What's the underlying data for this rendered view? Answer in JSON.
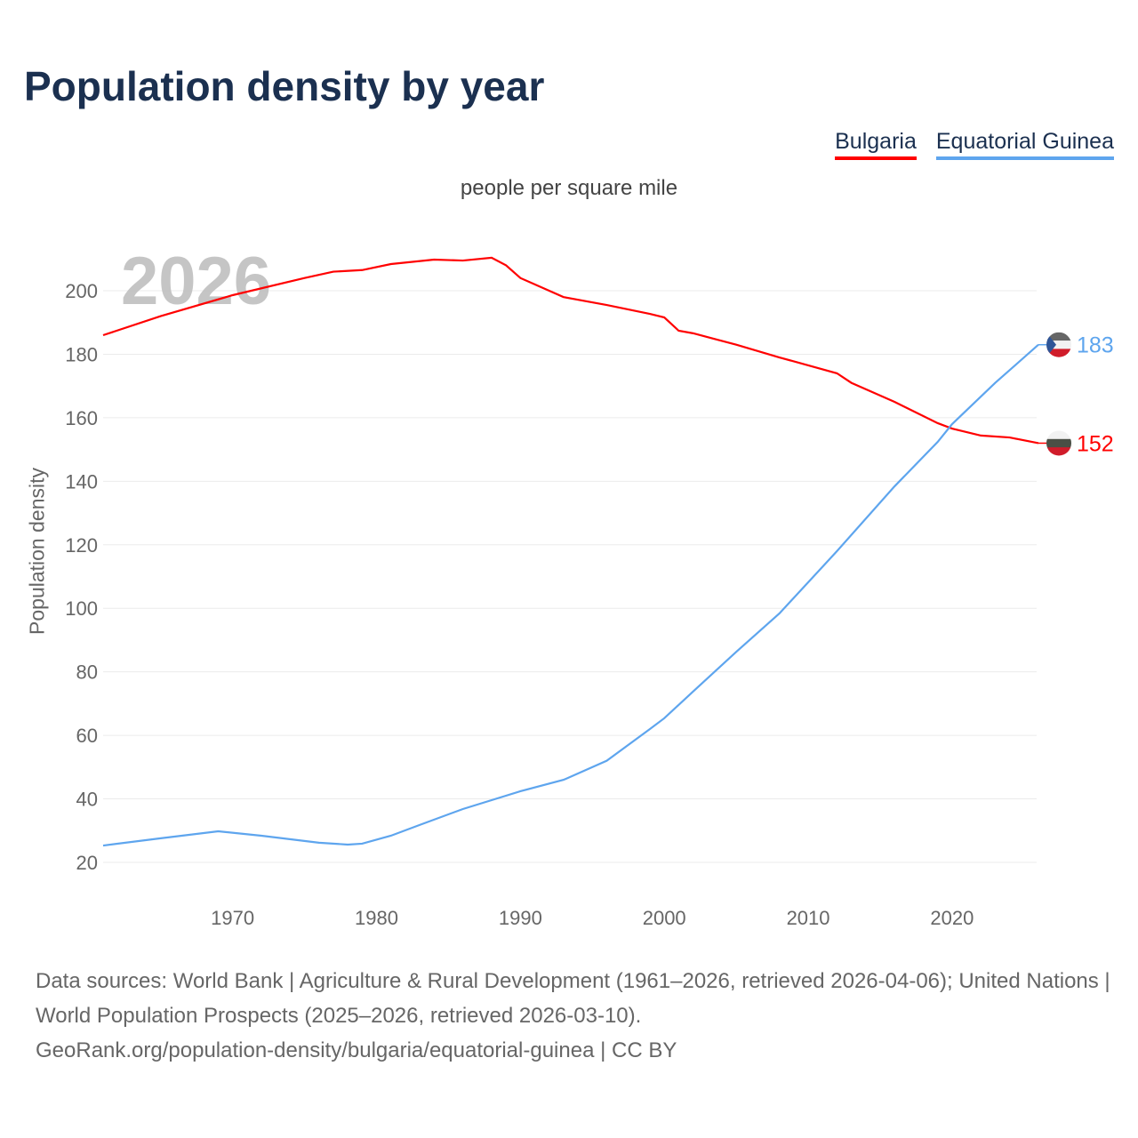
{
  "title": "Population density by year",
  "subtitle": "people per square mile",
  "year_watermark": "2026",
  "footer": {
    "sources": "Data sources: World Bank | Agriculture & Rural Development (1961–2026, retrieved 2026-04-06); United Nations | World Population Prospects (2025–2026, retrieved 2026-03-10).",
    "link": "GeoRank.org/population-density/bulgaria/equatorial-guinea | CC BY"
  },
  "chart_data": {
    "type": "line",
    "title": "Population density by year",
    "xlabel": "",
    "ylabel": "Population density",
    "xlim": [
      1961,
      2026
    ],
    "ylim": [
      10,
      215
    ],
    "xticks": [
      1970,
      1980,
      1990,
      2000,
      2010,
      2020
    ],
    "yticks": [
      20,
      40,
      60,
      80,
      100,
      120,
      140,
      160,
      180,
      200
    ],
    "grid": true,
    "legend_position": "top-right",
    "series": [
      {
        "name": "Bulgaria",
        "color": "#ff0000",
        "end_label": "152",
        "flag": "bulgaria-flag",
        "x": [
          1961,
          1965,
          1970,
          1975,
          1977,
          1979,
          1981,
          1984,
          1986,
          1988,
          1989,
          1990,
          1993,
          1996,
          1999,
          2000,
          2001,
          2002,
          2005,
          2008,
          2012,
          2013,
          2016,
          2019,
          2020,
          2022,
          2024,
          2026
        ],
        "y": [
          186,
          192,
          198.6,
          204,
          206,
          206.5,
          208.4,
          209.8,
          209.5,
          210.4,
          208,
          204,
          198,
          195.5,
          192.7,
          191.6,
          187.4,
          186.6,
          183,
          179,
          174,
          171,
          165,
          158.3,
          156.6,
          154.4,
          153.8,
          152
        ]
      },
      {
        "name": "Equatorial Guinea",
        "color": "#5ea5ee",
        "end_label": "183",
        "flag": "equatorial-guinea-flag",
        "x": [
          1961,
          1965,
          1969,
          1972,
          1976,
          1978,
          1979,
          1981,
          1983,
          1986,
          1990,
          1993,
          1996,
          1999,
          2000,
          2002,
          2005,
          2008,
          2012,
          2016,
          2019,
          2020,
          2023,
          2026
        ],
        "y": [
          25.3,
          27.6,
          29.8,
          28.4,
          26.2,
          25.6,
          25.9,
          28.4,
          31.8,
          36.8,
          42.4,
          46,
          52,
          62,
          65.4,
          73.8,
          86.3,
          98.4,
          118,
          138.4,
          152.4,
          158,
          171,
          183
        ]
      }
    ]
  }
}
